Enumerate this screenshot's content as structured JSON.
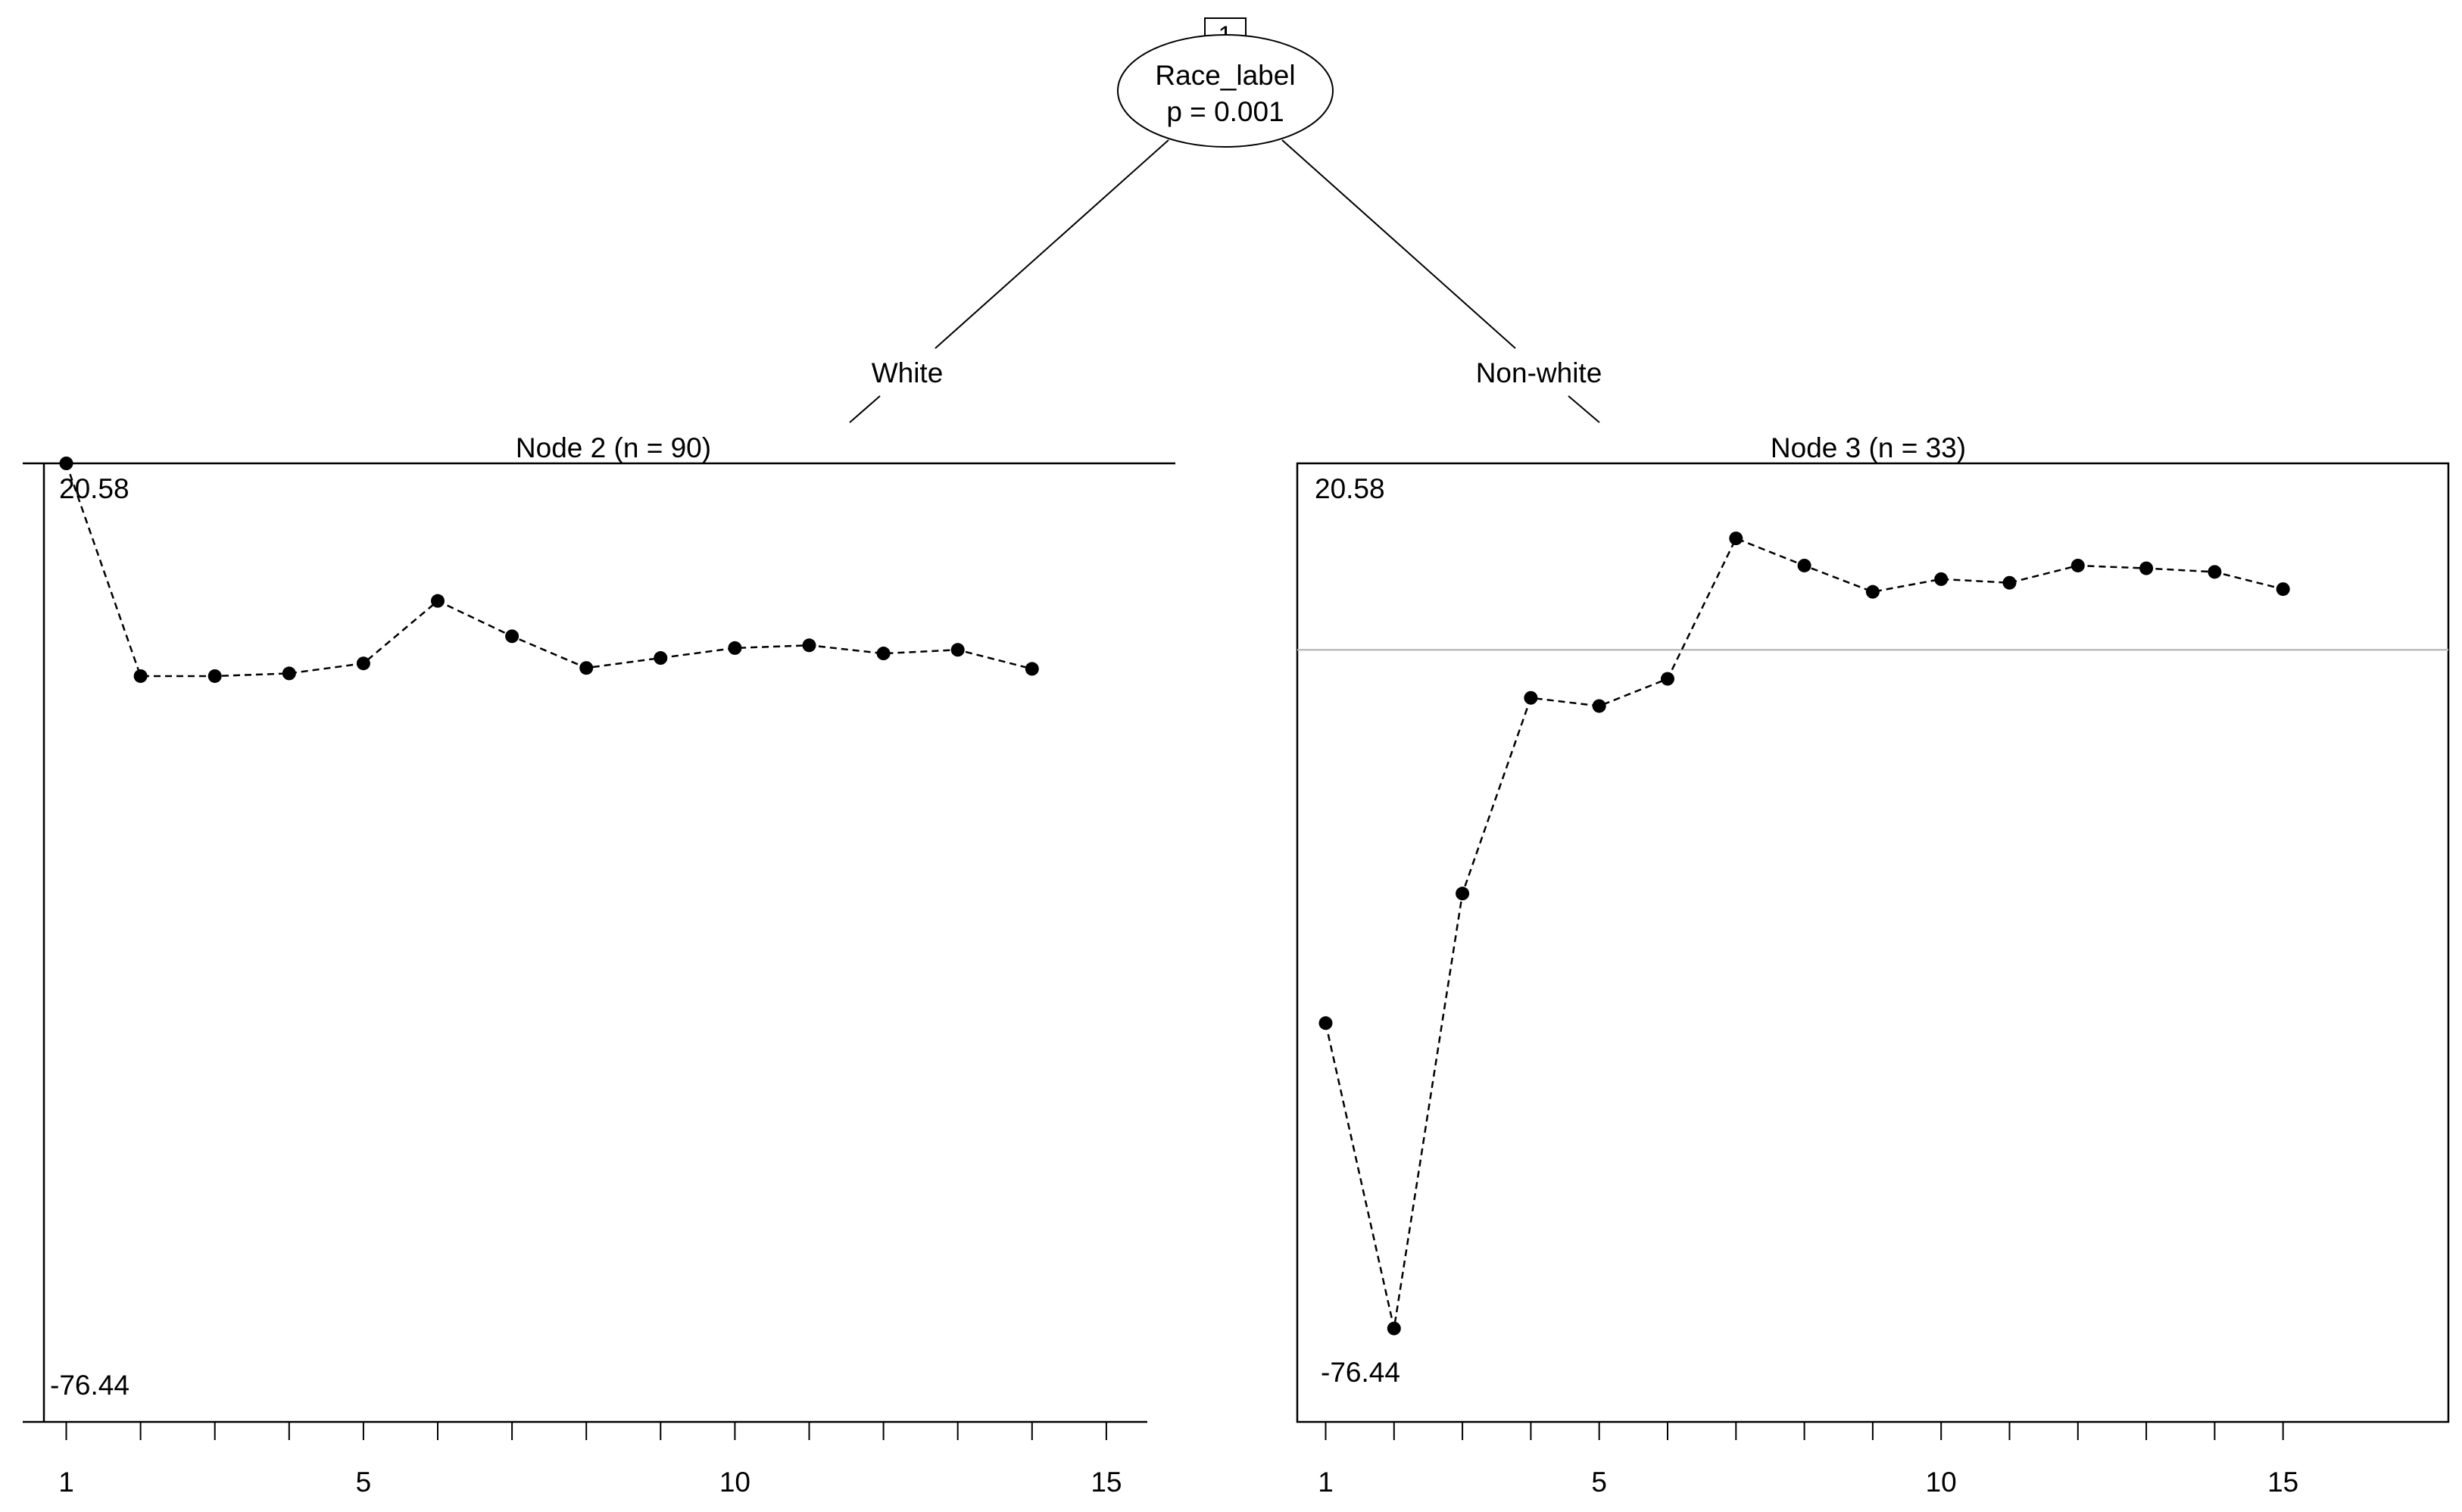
{
  "tree": {
    "root": {
      "id": "1",
      "variable": "Race_label",
      "p_value": "p = 0.001"
    },
    "branches": {
      "left": "White",
      "right": "Non-white"
    }
  },
  "chart_data": [
    {
      "type": "line",
      "title": "Node 2 (n = 90)",
      "xlabel": "",
      "ylabel": "",
      "x": [
        1,
        2,
        3,
        4,
        5,
        6,
        7,
        8,
        9,
        10,
        11,
        12,
        13,
        14
      ],
      "series": [
        {
          "values": [
            20.58,
            -2.9,
            -2.9,
            -2.6,
            -1.5,
            5.4,
            1.5,
            -2.0,
            -0.9,
            0.2,
            0.5,
            -0.4,
            0.0,
            -2.1
          ]
        }
      ],
      "xlim": [
        0,
        16
      ],
      "ylim": [
        -76.44,
        20.58
      ],
      "ytick_labels": [
        "20.58",
        "-76.44"
      ],
      "xtick_labels": [
        "1",
        "5",
        "10",
        "15"
      ],
      "xticks_minor": [
        1,
        2,
        3,
        4,
        5,
        6,
        7,
        8,
        9,
        10,
        11,
        12,
        13,
        14,
        15
      ],
      "reference_line": null
    },
    {
      "type": "line",
      "title": "Node 3 (n = 33)",
      "xlabel": "",
      "ylabel": "",
      "x": [
        1,
        2,
        3,
        4,
        5,
        6,
        7,
        8,
        9,
        10,
        11,
        12,
        13,
        14,
        15
      ],
      "series": [
        {
          "values": [
            -41.2,
            -74.9,
            -26.9,
            -5.3,
            -6.2,
            -3.2,
            12.3,
            9.3,
            6.4,
            7.8,
            7.4,
            9.3,
            9.0,
            8.6,
            6.7
          ]
        }
      ],
      "xlim": [
        0,
        16
      ],
      "ylim": [
        -76.44,
        20.58
      ],
      "ytick_labels": [
        "20.58",
        "-76.44"
      ],
      "xtick_labels": [
        "1",
        "5",
        "10",
        "15"
      ],
      "xticks_minor": [
        1,
        2,
        3,
        4,
        5,
        6,
        7,
        8,
        9,
        10,
        11,
        12,
        13,
        14,
        15
      ],
      "reference_line": 0
    }
  ],
  "colors": {
    "line": "#000000",
    "reference": "#bdbdbd",
    "background": "#ffffff"
  }
}
